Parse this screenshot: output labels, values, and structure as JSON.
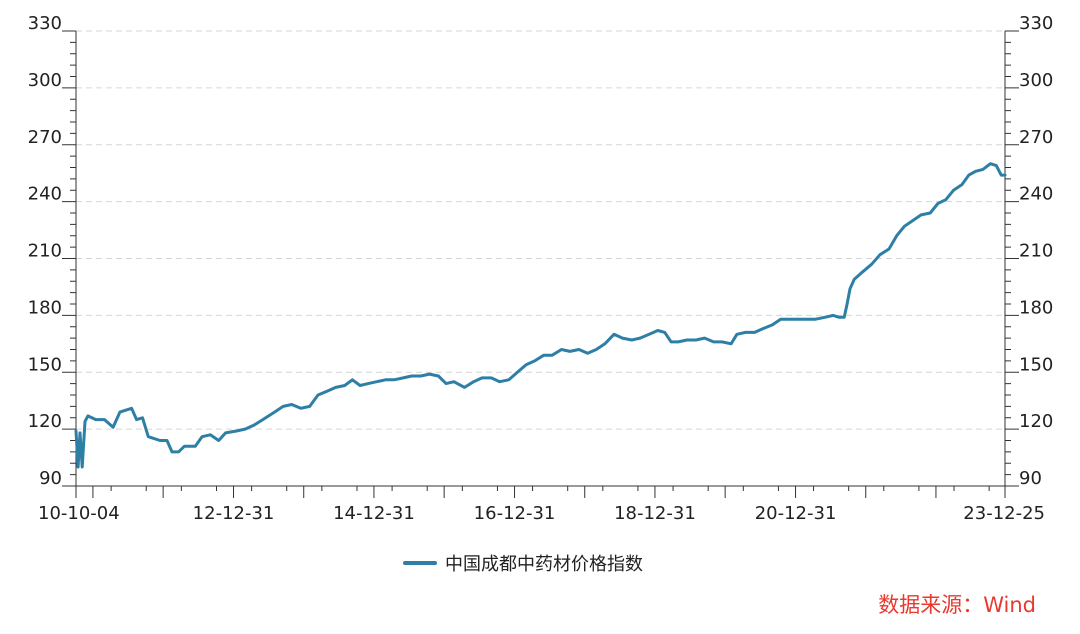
{
  "chart_data": {
    "type": "line",
    "x_ticks": [
      "10-10-04",
      "12-12-31",
      "14-12-31",
      "16-12-31",
      "18-12-31",
      "20-12-31",
      "23-12-25"
    ],
    "y_ticks": [
      90,
      120,
      150,
      180,
      210,
      240,
      270,
      300,
      330
    ],
    "ylim": [
      90,
      330
    ],
    "xlim": [
      "2010-10-04",
      "2023-12-25"
    ],
    "grid": true,
    "legend_position": "bottom",
    "series": [
      {
        "name": "中国成都中药材价格指数",
        "color": "#2d7fa6",
        "points": [
          [
            "2010-10-04",
            119
          ],
          [
            "2010-10-15",
            100
          ],
          [
            "2010-10-25",
            118
          ],
          [
            "2010-11-05",
            100
          ],
          [
            "2010-11-20",
            124
          ],
          [
            "2010-12-05",
            127
          ],
          [
            "2011-01-15",
            125
          ],
          [
            "2011-03-01",
            125
          ],
          [
            "2011-04-15",
            121
          ],
          [
            "2011-05-20",
            129
          ],
          [
            "2011-06-20",
            130
          ],
          [
            "2011-07-20",
            131
          ],
          [
            "2011-08-15",
            125
          ],
          [
            "2011-09-15",
            126
          ],
          [
            "2011-10-15",
            116
          ],
          [
            "2011-12-15",
            114
          ],
          [
            "2012-01-20",
            114
          ],
          [
            "2012-02-15",
            108
          ],
          [
            "2012-03-20",
            108
          ],
          [
            "2012-04-20",
            111
          ],
          [
            "2012-06-15",
            111
          ],
          [
            "2012-07-20",
            116
          ],
          [
            "2012-09-01",
            117
          ],
          [
            "2012-10-15",
            114
          ],
          [
            "2012-11-20",
            118
          ],
          [
            "2013-01-15",
            119
          ],
          [
            "2013-03-01",
            120
          ],
          [
            "2013-04-15",
            122
          ],
          [
            "2013-06-01",
            125
          ],
          [
            "2013-08-01",
            129
          ],
          [
            "2013-09-15",
            132
          ],
          [
            "2013-10-30",
            133
          ],
          [
            "2013-12-15",
            131
          ],
          [
            "2014-01-31",
            132
          ],
          [
            "2014-03-15",
            138
          ],
          [
            "2014-05-01",
            140
          ],
          [
            "2014-06-15",
            142
          ],
          [
            "2014-08-01",
            143
          ],
          [
            "2014-09-10",
            146
          ],
          [
            "2014-10-20",
            143
          ],
          [
            "2014-12-01",
            144
          ],
          [
            "2015-01-15",
            145
          ],
          [
            "2015-03-01",
            146
          ],
          [
            "2015-04-15",
            146
          ],
          [
            "2015-06-01",
            147
          ],
          [
            "2015-07-15",
            148
          ],
          [
            "2015-09-01",
            148
          ],
          [
            "2015-10-15",
            149
          ],
          [
            "2015-12-01",
            148
          ],
          [
            "2016-01-10",
            144
          ],
          [
            "2016-02-20",
            145
          ],
          [
            "2016-04-15",
            142
          ],
          [
            "2016-06-01",
            145
          ],
          [
            "2016-07-15",
            147
          ],
          [
            "2016-09-01",
            147
          ],
          [
            "2016-10-15",
            145
          ],
          [
            "2016-12-01",
            146
          ],
          [
            "2017-01-15",
            150
          ],
          [
            "2017-03-01",
            154
          ],
          [
            "2017-04-15",
            156
          ],
          [
            "2017-06-01",
            159
          ],
          [
            "2017-07-15",
            159
          ],
          [
            "2017-09-01",
            162
          ],
          [
            "2017-10-15",
            161
          ],
          [
            "2017-12-01",
            162
          ],
          [
            "2018-01-15",
            160
          ],
          [
            "2018-03-01",
            162
          ],
          [
            "2018-04-15",
            165
          ],
          [
            "2018-06-01",
            170
          ],
          [
            "2018-07-15",
            168
          ],
          [
            "2018-09-01",
            167
          ],
          [
            "2018-10-15",
            168
          ],
          [
            "2018-12-01",
            170
          ],
          [
            "2019-01-15",
            172
          ],
          [
            "2019-02-20",
            171
          ],
          [
            "2019-03-25",
            166
          ],
          [
            "2019-05-01",
            166
          ],
          [
            "2019-06-15",
            167
          ],
          [
            "2019-08-01",
            167
          ],
          [
            "2019-09-15",
            168
          ],
          [
            "2019-11-01",
            166
          ],
          [
            "2019-12-15",
            166
          ],
          [
            "2020-01-31",
            165
          ],
          [
            "2020-03-01",
            170
          ],
          [
            "2020-04-15",
            171
          ],
          [
            "2020-06-01",
            171
          ],
          [
            "2020-07-15",
            173
          ],
          [
            "2020-09-01",
            175
          ],
          [
            "2020-10-15",
            178
          ],
          [
            "2020-12-01",
            178
          ],
          [
            "2021-01-15",
            178
          ],
          [
            "2021-03-01",
            178
          ],
          [
            "2021-04-15",
            178
          ],
          [
            "2021-06-01",
            179
          ],
          [
            "2021-07-15",
            180
          ],
          [
            "2021-08-15",
            179
          ],
          [
            "2021-09-10",
            179
          ],
          [
            "2021-09-25",
            186
          ],
          [
            "2021-10-10",
            194
          ],
          [
            "2021-11-01",
            199
          ],
          [
            "2021-12-15",
            203
          ],
          [
            "2022-01-31",
            207
          ],
          [
            "2022-03-15",
            212
          ],
          [
            "2022-05-01",
            215
          ],
          [
            "2022-06-10",
            222
          ],
          [
            "2022-07-20",
            227
          ],
          [
            "2022-09-01",
            230
          ],
          [
            "2022-10-15",
            233
          ],
          [
            "2022-12-01",
            234
          ],
          [
            "2023-01-10",
            239
          ],
          [
            "2023-02-20",
            241
          ],
          [
            "2023-04-01",
            246
          ],
          [
            "2023-05-15",
            249
          ],
          [
            "2023-06-20",
            254
          ],
          [
            "2023-07-25",
            256
          ],
          [
            "2023-09-01",
            257
          ],
          [
            "2023-10-10",
            260
          ],
          [
            "2023-11-10",
            259
          ],
          [
            "2023-12-05",
            254
          ],
          [
            "2023-12-25",
            254
          ]
        ]
      }
    ]
  },
  "legend": {
    "label": "中国成都中药材价格指数",
    "color": "#2d7fa6"
  },
  "source": {
    "text": "数据来源：Wind",
    "color": "#e8392f"
  }
}
